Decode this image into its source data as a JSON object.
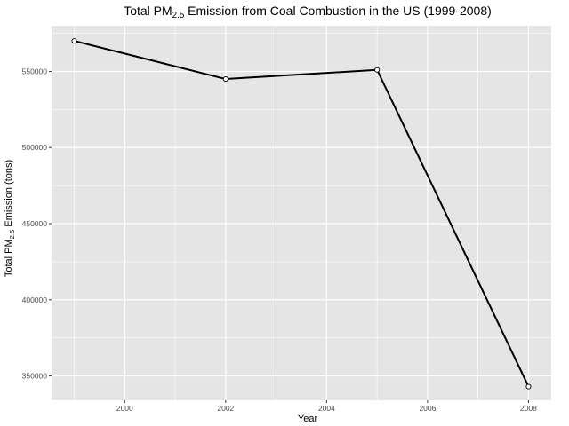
{
  "chart_data": {
    "type": "line",
    "title": {
      "before": "Total PM",
      "sub": "2.5",
      "after": " Emission from Coal Combustion in the US (1999-2008)"
    },
    "xlabel": "Year",
    "ylabel": {
      "before": "Total PM",
      "sub": "2.5",
      "after": " Emission (tons)"
    },
    "x": [
      1999,
      2002,
      2005,
      2008
    ],
    "values": [
      570000,
      545000,
      551000,
      343000
    ],
    "xlim": [
      1998.55,
      2008.45
    ],
    "ylim": [
      334000,
      580000
    ],
    "x_ticks": [
      2000,
      2002,
      2004,
      2006,
      2008
    ],
    "x_tick_labels": [
      "2000",
      "2002",
      "2004",
      "2006",
      "2008"
    ],
    "y_ticks": [
      350000,
      400000,
      450000,
      500000,
      550000
    ],
    "y_tick_labels": [
      "350000",
      "400000",
      "450000",
      "500000",
      "550000"
    ],
    "grid": true,
    "colors": {
      "panel": "#e5e5e5",
      "grid": "#ffffff",
      "line": "#000000",
      "point_fill": "#ffffff",
      "point_stroke": "#000000"
    }
  }
}
